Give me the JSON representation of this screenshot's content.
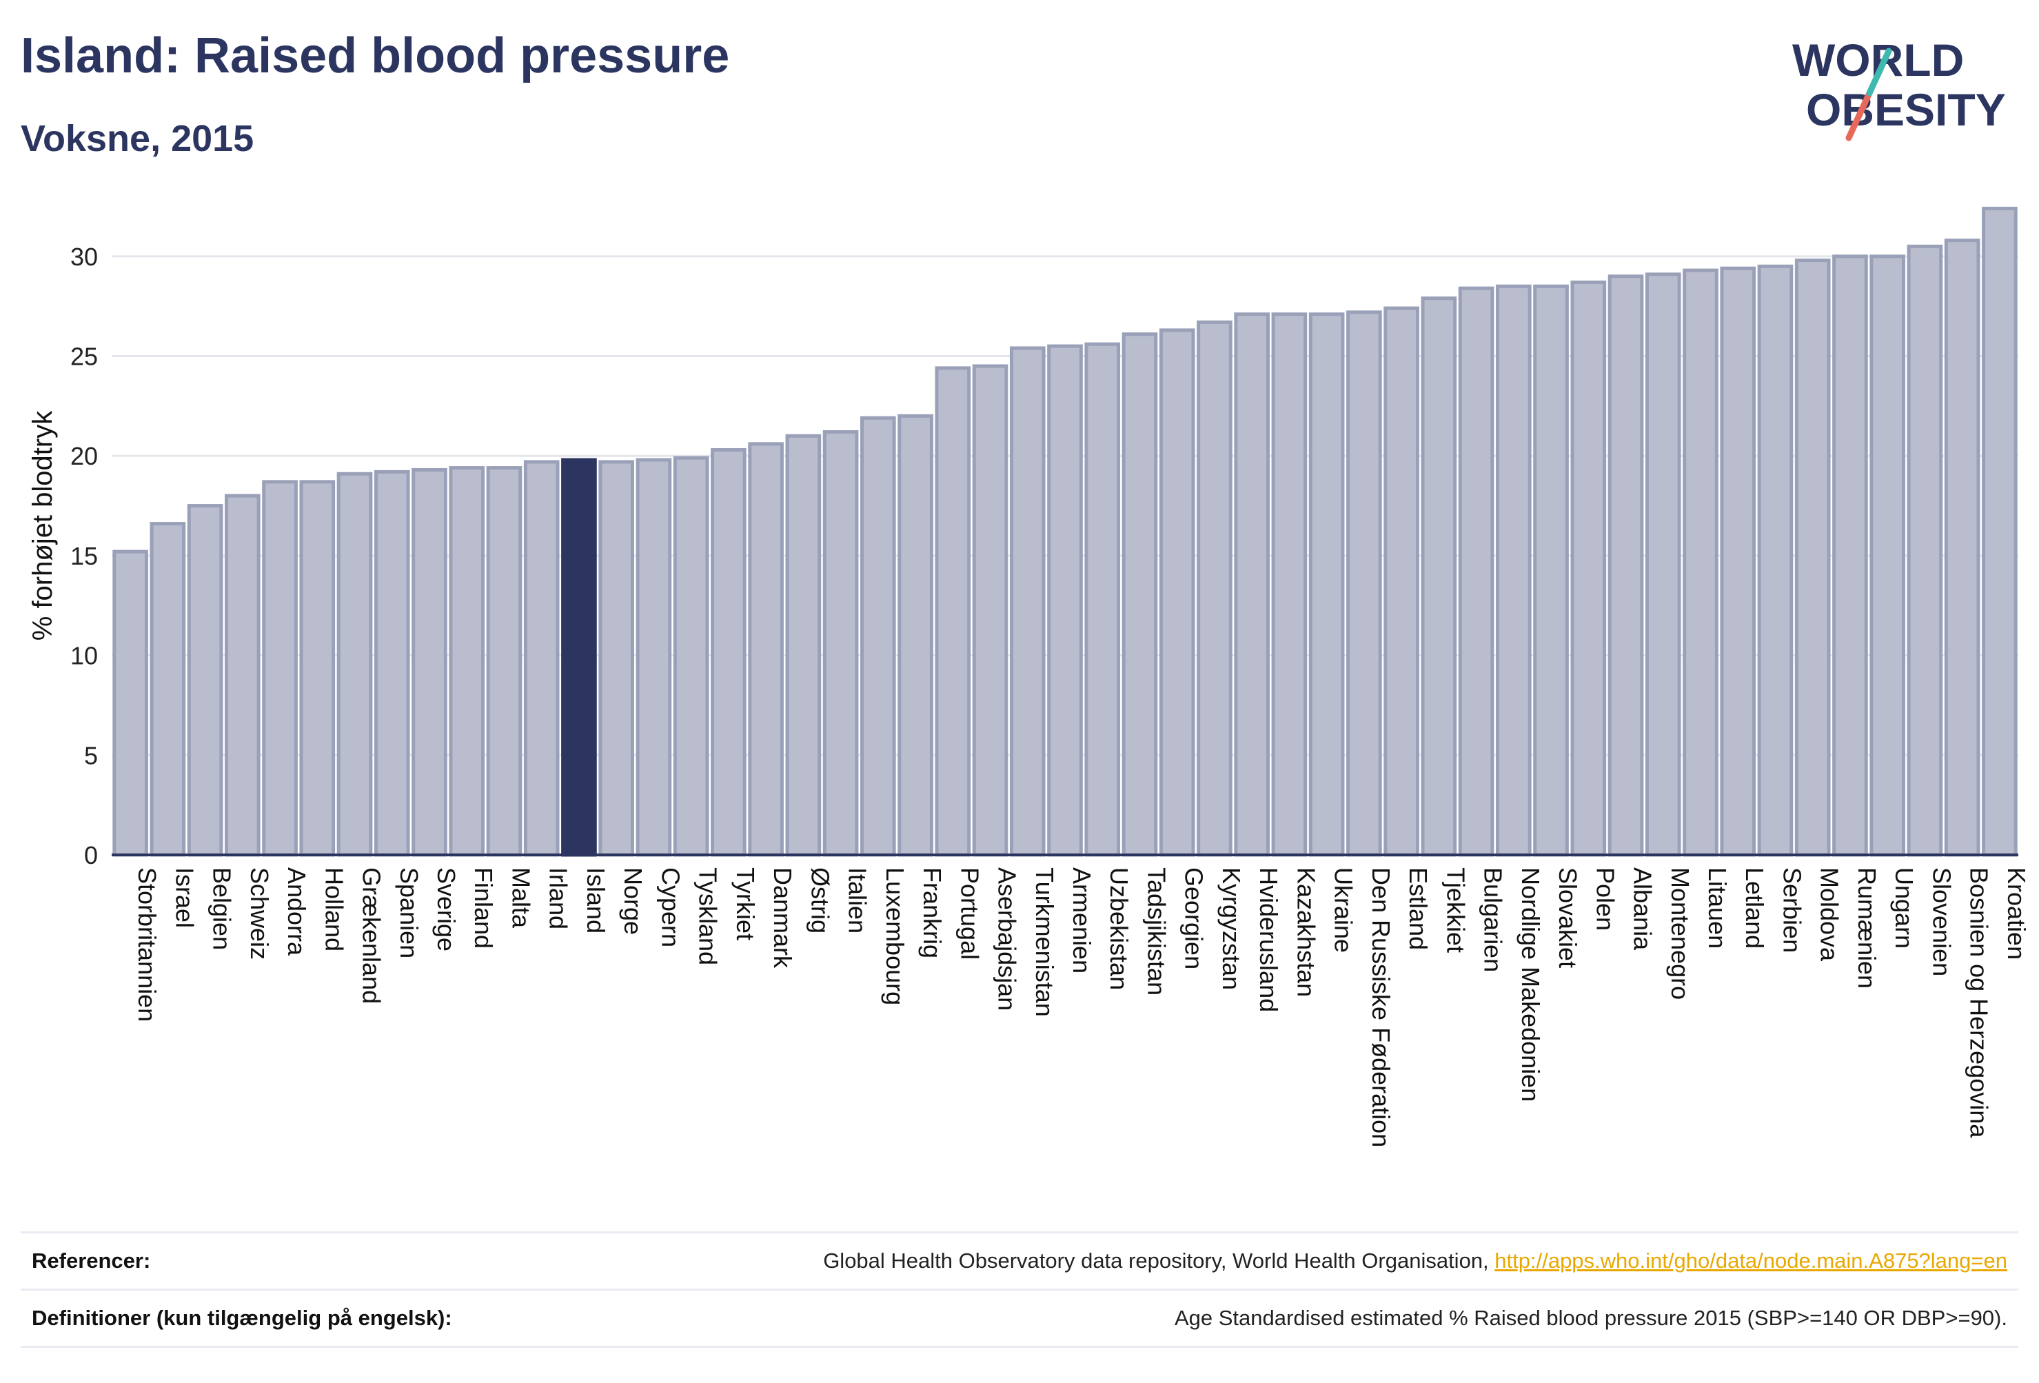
{
  "header": {
    "title": "Island: Raised blood pressure",
    "subtitle": "Voksne, 2015"
  },
  "logo": {
    "line1": "WORLD",
    "line2": "OBESITY"
  },
  "colors": {
    "bar": "#b9bdcd",
    "bar_edge": "#9aa0b8",
    "highlight": "#2b3560",
    "text": "#2b3560",
    "grid": "#e4e6ec",
    "accent_teal": "#3fb8b0",
    "accent_red": "#e8685a"
  },
  "chart_data": {
    "type": "bar",
    "ylabel": "% forhøjet blodtryk",
    "ylim": [
      0,
      33
    ],
    "yticks": [
      0,
      5,
      10,
      15,
      20,
      25,
      30
    ],
    "highlight": "Island",
    "categories": [
      "Storbritannien",
      "Israel",
      "Belgien",
      "Schweiz",
      "Andorra",
      "Holland",
      "Grækenland",
      "Spanien",
      "Sverige",
      "Finland",
      "Malta",
      "Irland",
      "Island",
      "Norge",
      "Cypern",
      "Tyskland",
      "Tyrkiet",
      "Danmark",
      "Østrig",
      "Italien",
      "Luxembourg",
      "Frankrig",
      "Portugal",
      "Aserbajdsjan",
      "Turkmenistan",
      "Armenien",
      "Uzbekistan",
      "Tadsjikistan",
      "Georgien",
      "Kyrgyzstan",
      "Hviderusland",
      "Kazakhstan",
      "Ukraine",
      "Den Russiske Føderation",
      "Estland",
      "Tjekkiet",
      "Bulgarien",
      "Nordlige Makedonien",
      "Slovakiet",
      "Polen",
      "Albania",
      "Montenegro",
      "Litauen",
      "Letland",
      "Serbien",
      "Moldova",
      "Rumænien",
      "Ungarn",
      "Slovenien",
      "Bosnien og Herzegovina",
      "Kroatien"
    ],
    "values": [
      15.2,
      16.6,
      17.5,
      18.0,
      18.7,
      18.7,
      19.1,
      19.2,
      19.3,
      19.4,
      19.4,
      19.7,
      19.8,
      19.7,
      19.8,
      19.9,
      20.3,
      20.6,
      21.0,
      21.2,
      21.9,
      22.0,
      24.4,
      24.5,
      25.4,
      25.5,
      25.6,
      26.1,
      26.3,
      26.7,
      27.1,
      27.1,
      27.1,
      27.2,
      27.4,
      27.9,
      28.4,
      28.5,
      28.5,
      28.7,
      29.0,
      29.1,
      29.3,
      29.4,
      29.5,
      29.8,
      30.0,
      30.0,
      30.5,
      30.8,
      32.4
    ]
  },
  "footer": {
    "references_label": "Referencer:",
    "references_text": "Global Health Observatory data repository, World Health Organisation, ",
    "references_link": "http://apps.who.int/gho/data/node.main.A875?lang=en",
    "definitions_label": "Definitioner (kun tilgængelig på engelsk):",
    "definitions_text": "Age Standardised estimated % Raised blood pressure 2015 (SBP>=140 OR DBP>=90)."
  }
}
